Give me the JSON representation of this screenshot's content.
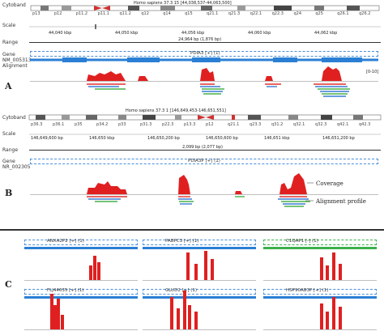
{
  "panelA": {
    "letter": "A",
    "labels": {
      "cytoband": "Cytoband",
      "scale": "Scale",
      "range": "Range",
      "gene": "Gene",
      "accession": "NM_005313",
      "alignment": "Alignment"
    },
    "header": "Homo sapiens 37.3 15 [44,038,537-44,063,500]",
    "bands": [
      "p13",
      "p12",
      "p11.2",
      "p11.1",
      "q11.2",
      "q12",
      "q14",
      "q15",
      "q21.1",
      "q21.3",
      "q22.1",
      "q22.3",
      "q24",
      "q25",
      "q26.1",
      "q26.2"
    ],
    "scale_ticks": [
      "44,040 kbp",
      "44,050 kbp",
      "44,056 kbp",
      "44,060 kbp",
      "44,062 kbp"
    ],
    "range": "24,964 bp (1,876 bp)",
    "gene_name": "PDIA3 [+] (1)",
    "y_max": "[0-10]"
  },
  "panelB": {
    "letter": "B",
    "labels": {
      "cytoband": "Cytoband",
      "scale": "Scale",
      "range": "Range",
      "gene": "Gene",
      "accession": "NR_002305"
    },
    "header": "Homo sapiens 37.3 1 [146,649,453-146,651,551]",
    "bands": [
      "p36.3",
      "p36.1",
      "p35",
      "p34.2",
      "p33",
      "p31.3",
      "p22.3",
      "p13.3",
      "p12",
      "q21.1",
      "q23.3",
      "q31.2",
      "q32.1",
      "q32.3",
      "q42.1",
      "q42.3"
    ],
    "scale_ticks": [
      "146,649,600 bp",
      "146,650 kbp",
      "146,650,200 bp",
      "146,650,600 bp",
      "146,651 kbp",
      "146,651,200 bp"
    ],
    "range": "2,099 bp (2,077 bp)",
    "gene_name": "PDIA3P [+] (1)",
    "coverage_note": "Coverage",
    "alignment_note": "Alignment profile"
  },
  "panelC": {
    "letter": "C",
    "genes": [
      {
        "name": "ANXA2P2 [+] (1)",
        "color": "blue"
      },
      {
        "name": "PABPC3 [+] (1)",
        "color": "blue"
      },
      {
        "name": "C1QAP1 [-] (1)",
        "color": "green"
      },
      {
        "name": "FLJ44635 [+] (1)",
        "color": "blue"
      },
      {
        "name": "GLUD2 [+] (1)",
        "color": "blue"
      },
      {
        "name": "HSP90AB3P [+] (1)",
        "color": "blue"
      }
    ]
  },
  "colors": {
    "coverage": "#e02020",
    "gene_track": "#2a7fd4",
    "gene_track_green": "#3cb04a",
    "align_red": "#e23030",
    "align_blue": "#3a7bd5",
    "align_green": "#46b04a"
  }
}
